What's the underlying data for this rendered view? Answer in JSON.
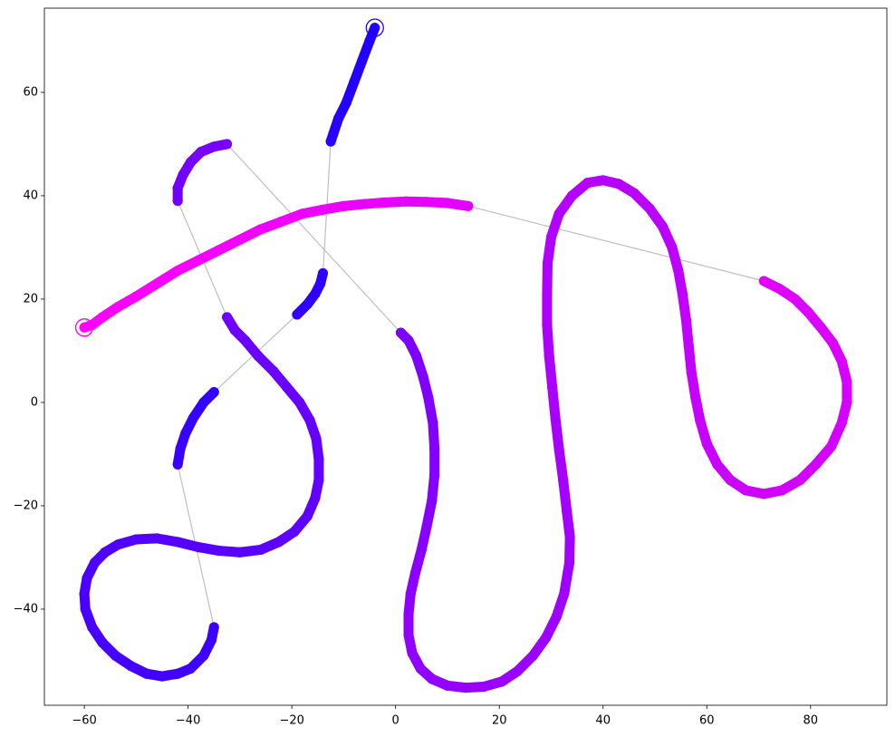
{
  "chart_data": {
    "type": "trajectory",
    "xlim": [
      -67.7,
      94.7
    ],
    "ylim": [
      -58.6,
      76.3
    ],
    "xticks": [
      {
        "value": -60,
        "label": "−60"
      },
      {
        "value": -40,
        "label": "−40"
      },
      {
        "value": -20,
        "label": "−20"
      },
      0,
      20,
      40,
      60,
      80
    ],
    "yticks": [
      {
        "value": -40,
        "label": "−40"
      },
      {
        "value": -20,
        "label": "−20"
      },
      0,
      20,
      40,
      60
    ],
    "cmap": [
      "#2000ff",
      "#ff00ff"
    ],
    "connector_color": "#bfbfbf",
    "endpoint_markers": true,
    "series": [
      {
        "x": [
          -4,
          -5,
          -6.5,
          -8,
          -9.5,
          -11,
          -12,
          -12.5
        ],
        "y": [
          72.5,
          70,
          66,
          62,
          58,
          55,
          52,
          50.5
        ]
      },
      {
        "x": [
          -14,
          -14.5,
          -15.5,
          -17,
          -19
        ],
        "y": [
          25,
          23,
          21,
          19,
          17
        ]
      },
      {
        "x": [
          -35,
          -37,
          -39,
          -40.5,
          -41.5,
          -42
        ],
        "y": [
          2,
          0,
          -3,
          -6,
          -9,
          -12
        ]
      },
      {
        "x": [
          -35,
          -35.5,
          -37,
          -39.5,
          -42,
          -45,
          -48,
          -51,
          -54,
          -56.5,
          -58.5,
          -59.8,
          -60,
          -59.5,
          -58,
          -56,
          -53.5,
          -50,
          -46,
          -42,
          -38,
          -34,
          -30,
          -26,
          -22.5,
          -19.5,
          -17,
          -15.5,
          -14.8,
          -14.8,
          -15.3,
          -16.5,
          -18.5,
          -21,
          -23.5,
          -26.5,
          -29,
          -31,
          -32.5
        ],
        "y": [
          -43.5,
          -46,
          -49,
          -51.5,
          -52.5,
          -53,
          -52.5,
          -51,
          -49,
          -46.5,
          -43.5,
          -40,
          -37,
          -34,
          -31,
          -29,
          -27.5,
          -26.5,
          -26.3,
          -27,
          -28,
          -28.7,
          -29,
          -28.5,
          -27,
          -25,
          -22,
          -18.5,
          -15,
          -11,
          -7,
          -3.5,
          0,
          3,
          6,
          9,
          12,
          14,
          16.5
        ]
      },
      {
        "x": [
          -42,
          -42,
          -41,
          -39.5,
          -37.5,
          -35,
          -32.5
        ],
        "y": [
          39,
          41.5,
          44,
          46.5,
          48.5,
          49.5,
          50
        ]
      },
      {
        "x": [
          1,
          2.5,
          4,
          5.3,
          6.3,
          7.2,
          7.5,
          7.5,
          7,
          6,
          5,
          3.8,
          2.9,
          2.5,
          2.5,
          3.2,
          4.8,
          7,
          10,
          13.5,
          17,
          20.5,
          23.5,
          26.5,
          29,
          31,
          32.5,
          33.5,
          33.6,
          33,
          32.3,
          31.5,
          30.8,
          30.2,
          29.6,
          29.2,
          29.2,
          29.3,
          30,
          31.5,
          34,
          37,
          40,
          43,
          46,
          49,
          51.5,
          53.3,
          54.5,
          55.3,
          56,
          56.5,
          57,
          57.8,
          58.7,
          60,
          62,
          64.5,
          67.5,
          71,
          74.5,
          78,
          81,
          84,
          86,
          87,
          87,
          86,
          84.3,
          82,
          79.5,
          77,
          74,
          71
        ],
        "y": [
          13.5,
          12,
          9,
          5,
          1,
          -4,
          -9,
          -14,
          -19,
          -24,
          -28.5,
          -33,
          -37,
          -41,
          -45,
          -48.5,
          -51.5,
          -53.5,
          -54.8,
          -55.2,
          -55,
          -54,
          -52,
          -49,
          -45.5,
          -41.5,
          -37,
          -31,
          -26,
          -21,
          -15,
          -9,
          -3,
          3,
          9,
          15,
          21,
          27,
          32,
          36.5,
          40,
          42.5,
          43,
          42.3,
          40.5,
          37.5,
          34,
          30,
          25.5,
          21,
          16,
          11,
          6,
          1,
          -3.5,
          -8,
          -12,
          -15,
          -17,
          -17.7,
          -17,
          -15,
          -12,
          -8.5,
          -4,
          0,
          4,
          8,
          11.5,
          14.5,
          17.5,
          20,
          22,
          23.5
        ]
      },
      {
        "x": [
          14,
          10,
          6,
          2,
          -2,
          -6,
          -10,
          -14,
          -18,
          -22,
          -26,
          -30,
          -34,
          -38,
          -42,
          -46,
          -50,
          -53.5,
          -56.5,
          -58.5,
          -60
        ],
        "y": [
          38,
          38.6,
          38.8,
          38.9,
          38.7,
          38.4,
          38,
          37.3,
          36.5,
          35,
          33.5,
          31.5,
          29.5,
          27.5,
          25.5,
          23,
          20.5,
          18.5,
          16.5,
          15,
          14.5
        ]
      }
    ]
  }
}
